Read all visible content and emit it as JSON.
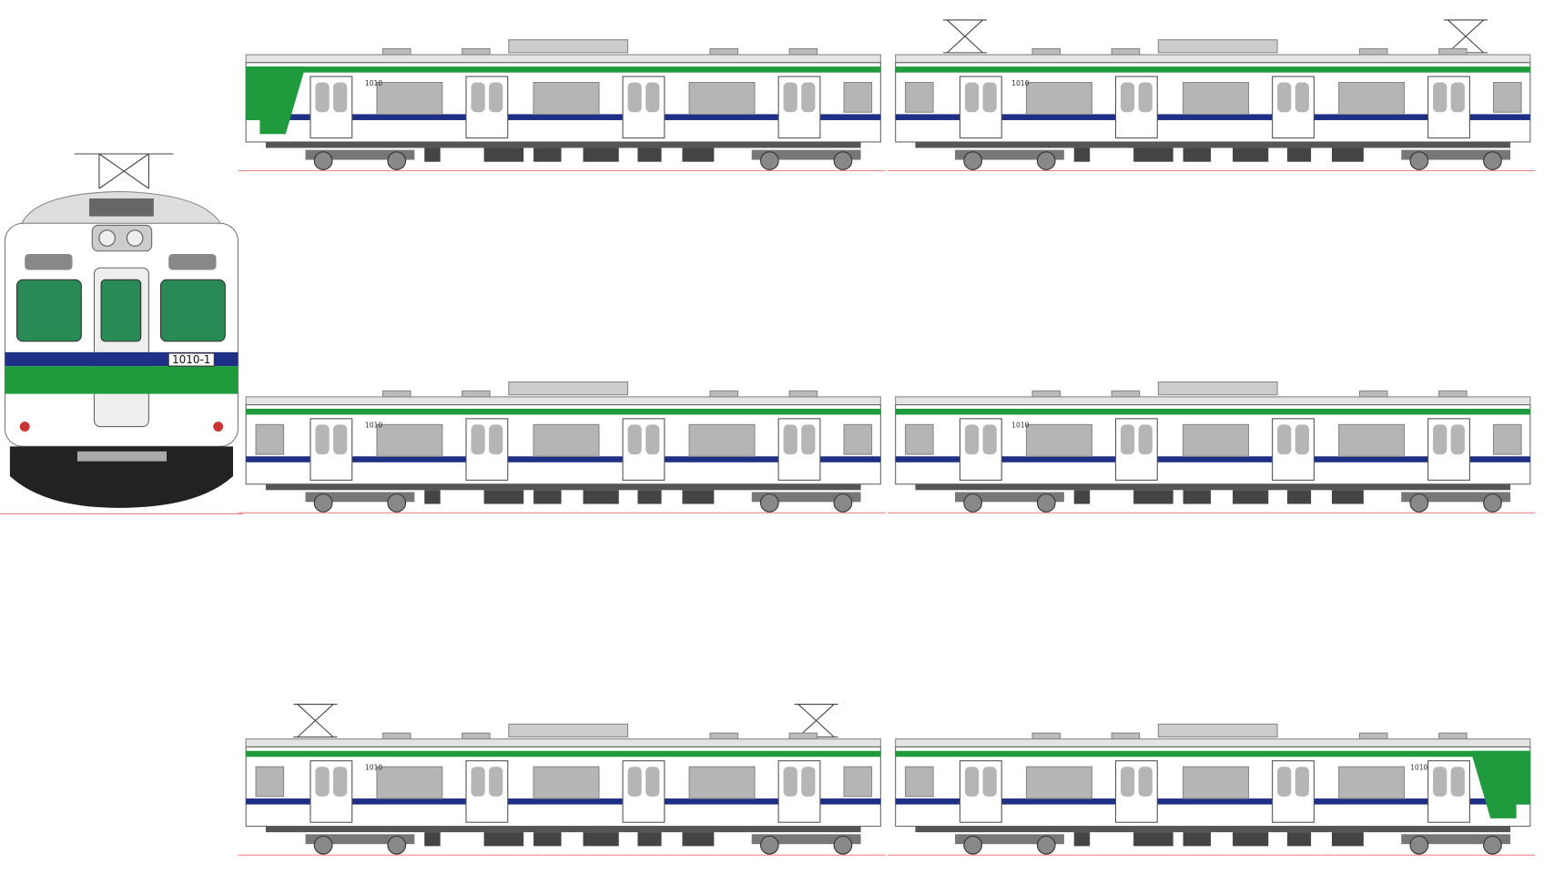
{
  "front_number": "1010-1",
  "cars": [
    {
      "number": "1010"
    },
    {
      "number": "1010"
    },
    {
      "number": "1010"
    },
    {
      "number": "1010"
    },
    {
      "number": "1010"
    },
    {
      "number": "1010"
    }
  ]
}
